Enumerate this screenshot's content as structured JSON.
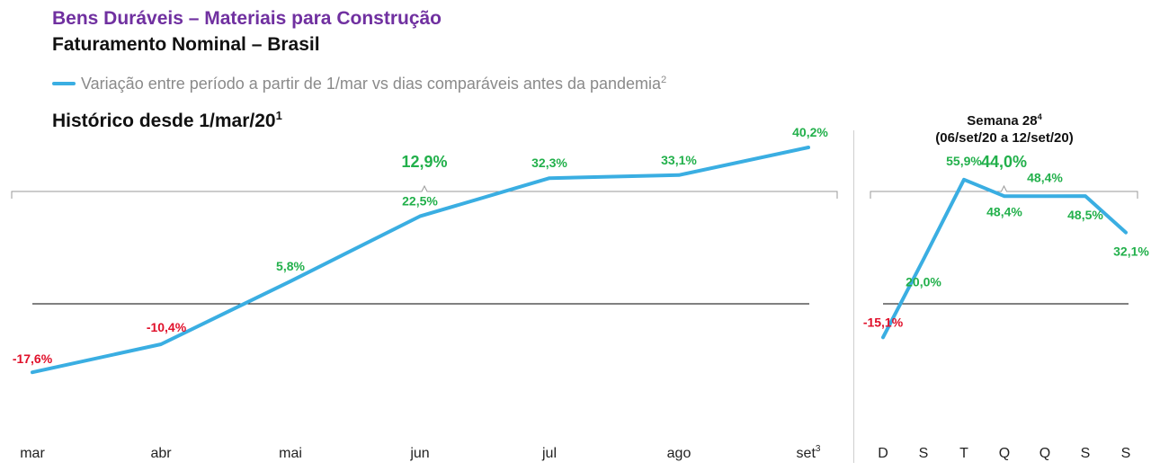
{
  "header": {
    "title": "Bens Duráveis – Materiais para Construção",
    "subtitle": "Faturamento Nominal – Brasil"
  },
  "legend": {
    "label": "Variação entre período a partir de 1/mar vs dias comparáveis antes da pandemia",
    "footnote": "2",
    "color": "#3aaee2"
  },
  "colors": {
    "positive": "#22b04b",
    "negative": "#e0102a",
    "line": "#3aaee2",
    "baseline": "#000000",
    "bracket": "#9a9a9a"
  },
  "chart_data": [
    {
      "type": "line",
      "title": "Histórico desde 1/mar/20",
      "title_footnote": "1",
      "summary_value": "12,9%",
      "categories": [
        "mar",
        "abr",
        "mai",
        "jun",
        "jul",
        "ago",
        "set"
      ],
      "category_footnotes": [
        "",
        "",
        "",
        "",
        "",
        "",
        "3"
      ],
      "values": [
        -17.6,
        -10.4,
        5.8,
        22.5,
        32.3,
        33.1,
        40.2
      ],
      "labels": [
        "-17,6%",
        "-10,4%",
        "5,8%",
        "22,5%",
        "32,3%",
        "33,1%",
        "40,2%"
      ],
      "ylim": [
        -55,
        55
      ]
    },
    {
      "type": "line",
      "title": "Semana 28",
      "title_footnote": "4",
      "title_range": "(06/set/20 a 12/set/20)",
      "summary_value": "44,0%",
      "categories": [
        "D",
        "S",
        "T",
        "Q",
        "Q",
        "S",
        "S"
      ],
      "values": [
        -15.1,
        20.0,
        55.9,
        48.4,
        48.4,
        48.5,
        32.1
      ],
      "labels": [
        "-15,1%",
        "20,0%",
        "55,9%",
        "48,4%",
        "48,4%",
        "48,5%",
        "32,1%"
      ],
      "ylim": [
        -93,
        74
      ]
    }
  ]
}
